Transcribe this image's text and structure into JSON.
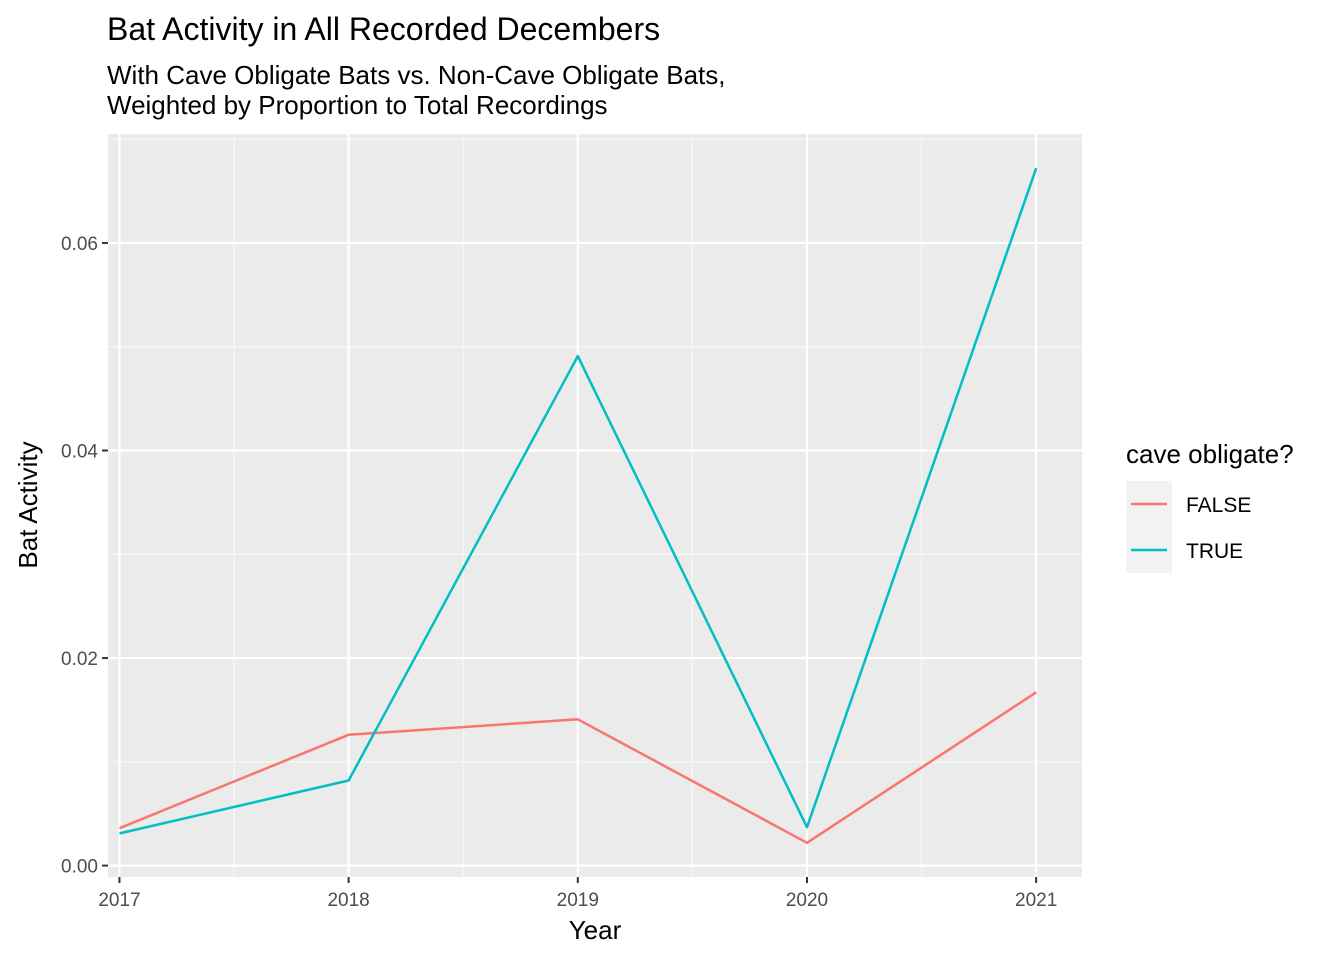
{
  "chart_data": {
    "type": "line",
    "title": "Bat Activity in All Recorded Decembers",
    "subtitle_lines": [
      "With Cave Obligate Bats vs. Non-Cave Obligate Bats,",
      "Weighted by Proportion to Total Recordings"
    ],
    "xlabel": "Year",
    "ylabel": "Bat Activity",
    "x": [
      2017,
      2018,
      2019,
      2020,
      2021
    ],
    "x_tick_labels": [
      "2017",
      "2018",
      "2019",
      "2020",
      "2021"
    ],
    "y_ticks": [
      0.0,
      0.02,
      0.04,
      0.06
    ],
    "y_tick_labels": [
      "0.00",
      "0.02",
      "0.04",
      "0.06"
    ],
    "xlim": [
      2016.95,
      2021.2
    ],
    "ylim": [
      -0.0011,
      0.0705
    ],
    "grid": true,
    "legend": {
      "title": "cave obligate?",
      "position": "right"
    },
    "series": [
      {
        "name": "FALSE",
        "color": "#F8766D",
        "values": [
          0.0036,
          0.0126,
          0.0141,
          0.0022,
          0.0167
        ]
      },
      {
        "name": "TRUE",
        "color": "#00BFC4",
        "values": [
          0.0031,
          0.0082,
          0.0491,
          0.0037,
          0.0672
        ]
      }
    ]
  }
}
